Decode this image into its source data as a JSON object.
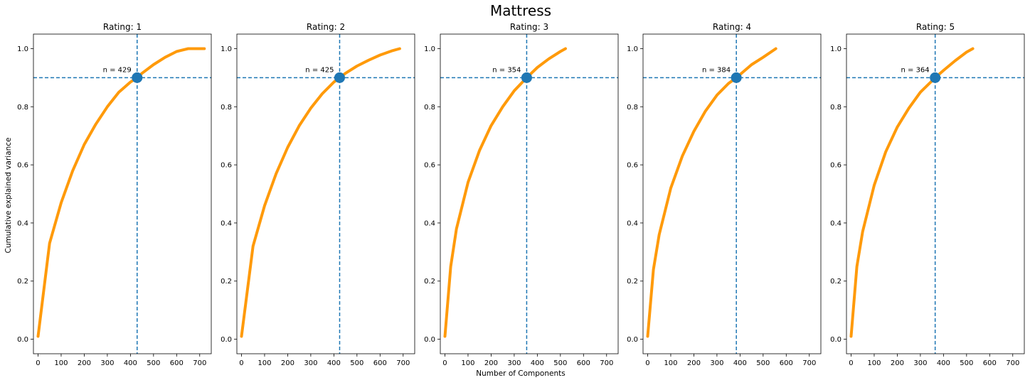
{
  "figure": {
    "title": "Mattress",
    "xlabel": "Number of Components",
    "ylabel": "Cumulative explained variance"
  },
  "colors": {
    "curve": "#ff9a0a",
    "marker": "#1f77b4",
    "reference_line": "#1f77b4",
    "axes": "#000000"
  },
  "chart_data": [
    {
      "type": "line",
      "title": "Rating: 1",
      "xlim": [
        -20,
        750
      ],
      "ylim": [
        -0.05,
        1.05
      ],
      "xticks": [
        0,
        100,
        200,
        300,
        400,
        500,
        600,
        700
      ],
      "yticks": [
        0.0,
        0.2,
        0.4,
        0.6,
        0.8,
        1.0
      ],
      "x": [
        0,
        50,
        100,
        150,
        200,
        250,
        300,
        350,
        400,
        429,
        450,
        500,
        550,
        600,
        650,
        720
      ],
      "y": [
        0.01,
        0.33,
        0.47,
        0.58,
        0.67,
        0.74,
        0.8,
        0.85,
        0.885,
        0.9,
        0.915,
        0.945,
        0.97,
        0.99,
        1.0,
        1.0
      ],
      "threshold_y": 0.9,
      "n_components": 429,
      "annotation": "n = 429"
    },
    {
      "type": "line",
      "title": "Rating: 2",
      "xlim": [
        -20,
        750
      ],
      "ylim": [
        -0.05,
        1.05
      ],
      "xticks": [
        0,
        100,
        200,
        300,
        400,
        500,
        600,
        700
      ],
      "yticks": [
        0.0,
        0.2,
        0.4,
        0.6,
        0.8,
        1.0
      ],
      "x": [
        0,
        50,
        100,
        150,
        200,
        250,
        300,
        350,
        400,
        425,
        450,
        500,
        550,
        600,
        650,
        685
      ],
      "y": [
        0.01,
        0.32,
        0.46,
        0.57,
        0.66,
        0.735,
        0.795,
        0.845,
        0.885,
        0.9,
        0.915,
        0.94,
        0.96,
        0.978,
        0.992,
        1.0
      ],
      "threshold_y": 0.9,
      "n_components": 425,
      "annotation": "n = 425"
    },
    {
      "type": "line",
      "title": "Rating: 3",
      "xlim": [
        -20,
        750
      ],
      "ylim": [
        -0.05,
        1.05
      ],
      "xticks": [
        0,
        100,
        200,
        300,
        400,
        500,
        600,
        700
      ],
      "yticks": [
        0.0,
        0.2,
        0.4,
        0.6,
        0.8,
        1.0
      ],
      "x": [
        0,
        25,
        50,
        100,
        150,
        200,
        250,
        300,
        354,
        400,
        450,
        500,
        522
      ],
      "y": [
        0.01,
        0.25,
        0.38,
        0.54,
        0.65,
        0.735,
        0.8,
        0.855,
        0.9,
        0.935,
        0.965,
        0.99,
        1.0
      ],
      "threshold_y": 0.9,
      "n_components": 354,
      "annotation": "n = 354"
    },
    {
      "type": "line",
      "title": "Rating: 4",
      "xlim": [
        -20,
        750
      ],
      "ylim": [
        -0.05,
        1.05
      ],
      "xticks": [
        0,
        100,
        200,
        300,
        400,
        500,
        600,
        700
      ],
      "yticks": [
        0.0,
        0.2,
        0.4,
        0.6,
        0.8,
        1.0
      ],
      "x": [
        0,
        25,
        50,
        100,
        150,
        200,
        250,
        300,
        350,
        384,
        450,
        500,
        555
      ],
      "y": [
        0.01,
        0.24,
        0.36,
        0.52,
        0.63,
        0.715,
        0.785,
        0.84,
        0.88,
        0.9,
        0.945,
        0.97,
        1.0
      ],
      "threshold_y": 0.9,
      "n_components": 384,
      "annotation": "n = 384"
    },
    {
      "type": "line",
      "title": "Rating: 5",
      "xlim": [
        -20,
        750
      ],
      "ylim": [
        -0.05,
        1.05
      ],
      "xticks": [
        0,
        100,
        200,
        300,
        400,
        500,
        600,
        700
      ],
      "yticks": [
        0.0,
        0.2,
        0.4,
        0.6,
        0.8,
        1.0
      ],
      "x": [
        0,
        25,
        50,
        100,
        150,
        200,
        250,
        300,
        364,
        400,
        450,
        500,
        527
      ],
      "y": [
        0.01,
        0.25,
        0.37,
        0.53,
        0.645,
        0.73,
        0.795,
        0.85,
        0.9,
        0.925,
        0.958,
        0.988,
        1.0
      ],
      "threshold_y": 0.9,
      "n_components": 364,
      "annotation": "n = 364"
    }
  ]
}
